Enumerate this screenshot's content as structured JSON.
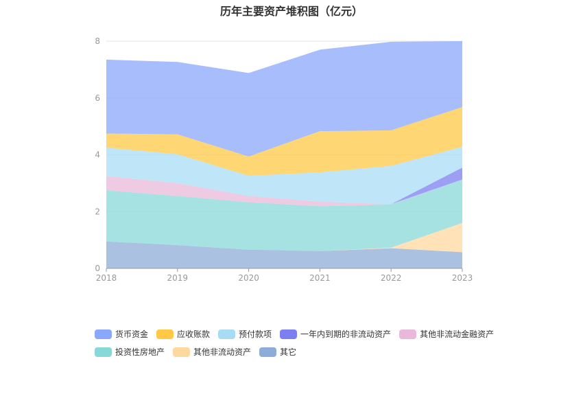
{
  "chart_data": {
    "type": "area",
    "stacked": true,
    "title": "历年主要资产堆积图（亿元）",
    "x": [
      "2018",
      "2019",
      "2020",
      "2021",
      "2022",
      "2023"
    ],
    "ylim": [
      0,
      8
    ],
    "yticks": [
      0,
      2,
      4,
      6,
      8
    ],
    "grid": true,
    "legend_position": "bottom",
    "series": [
      {
        "name": "其它",
        "color": "#8eacd8",
        "values": [
          0.95,
          0.82,
          0.66,
          0.61,
          0.71,
          0.57
        ]
      },
      {
        "name": "其他非流动资产",
        "color": "#ffd8a0",
        "values": [
          0,
          0,
          0,
          0,
          0.02,
          1.03
        ]
      },
      {
        "name": "投资性房地产",
        "color": "#88d8d8",
        "values": [
          1.8,
          1.73,
          1.67,
          1.58,
          1.52,
          1.53
        ]
      },
      {
        "name": "其他非流动金融资产",
        "color": "#e9b8da",
        "values": [
          0.5,
          0.45,
          0.22,
          0.16,
          0.01,
          0
        ]
      },
      {
        "name": "一年内到期的非流动资产",
        "color": "#7b7ff0",
        "values": [
          0,
          0,
          0,
          0,
          0,
          0.42
        ]
      },
      {
        "name": "预付款项",
        "color": "#a8dcf5",
        "values": [
          1.0,
          1.02,
          0.71,
          1.03,
          1.35,
          0.73
        ]
      },
      {
        "name": "应收账款",
        "color": "#ffc845",
        "values": [
          0.5,
          0.7,
          0.68,
          1.45,
          1.25,
          1.4
        ]
      },
      {
        "name": "货币资金",
        "color": "#89a7fb",
        "values": [
          2.6,
          2.55,
          2.94,
          2.87,
          3.12,
          2.32
        ]
      }
    ],
    "legend_order": [
      "货币资金",
      "应收账款",
      "预付款项",
      "一年内到期的非流动资产",
      "其他非流动金融资产",
      "投资性房地产",
      "其他非流动资产",
      "其它"
    ]
  }
}
